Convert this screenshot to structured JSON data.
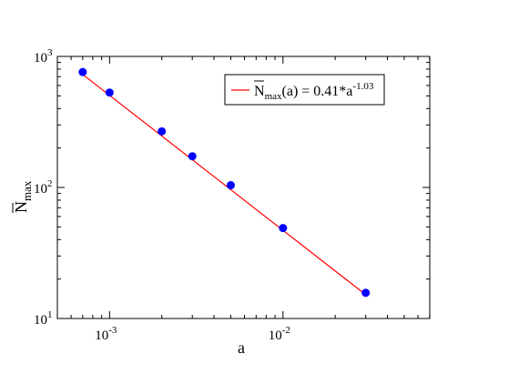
{
  "chart_data": {
    "type": "scatter",
    "xlabel": "a",
    "ylabel": {
      "base": "N",
      "sub": "max"
    },
    "xscale": "log",
    "yscale": "log",
    "xlim": [
      0.0005,
      0.0702
    ],
    "ylim": [
      10,
      1000
    ],
    "x_ticks": [
      {
        "value": 0.001,
        "base": "10",
        "exp": "-3"
      },
      {
        "value": 0.01,
        "base": "10",
        "exp": "-2"
      }
    ],
    "y_ticks": [
      {
        "value": 10,
        "base": "10",
        "exp": "1"
      },
      {
        "value": 100,
        "base": "10",
        "exp": "2"
      },
      {
        "value": 1000,
        "base": "10",
        "exp": "3"
      }
    ],
    "grid": false,
    "legend_position": "top-right",
    "series": [
      {
        "type": "scatter",
        "color": "#0000ff",
        "x": [
          0.0007,
          0.001,
          0.002,
          0.003,
          0.005,
          0.01,
          0.03
        ],
        "y": [
          760,
          530,
          268,
          173,
          104,
          49,
          15.7
        ]
      },
      {
        "type": "line",
        "color": "#ff0000",
        "fit": {
          "coef": 0.41,
          "exponent": -1.03
        },
        "x": [
          0.0007,
          0.03
        ],
        "legend": {
          "prefix": "N",
          "sub": "max",
          "mid": "(a) = 0.41*a",
          "sup": "-1.03"
        }
      }
    ]
  }
}
